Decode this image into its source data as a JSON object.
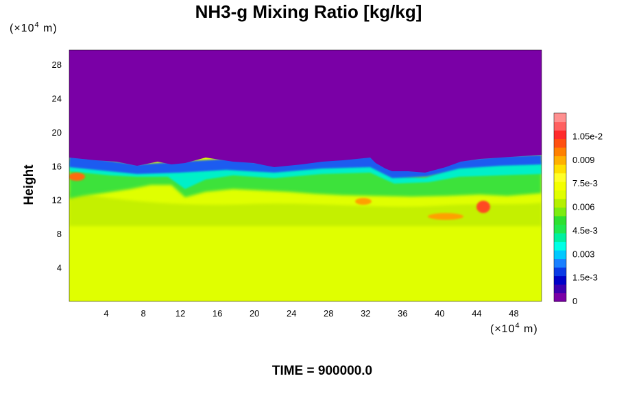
{
  "chart_data": {
    "type": "heatmap",
    "title": "NH3-g Mixing Ratio [kg/kg]",
    "ylabel": "Height",
    "x_unit": {
      "prefix": "(×10",
      "exp": "4",
      "suffix": " m)"
    },
    "y_unit": {
      "prefix": "(×10",
      "exp": "4",
      "suffix": " m)"
    },
    "xlim": [
      0,
      51
    ],
    "ylim": [
      0,
      29.7
    ],
    "x_ticks": [
      "4",
      "8",
      "12",
      "16",
      "20",
      "24",
      "28",
      "32",
      "36",
      "40",
      "44",
      "48"
    ],
    "x_tick_values": [
      4,
      8,
      12,
      16,
      20,
      24,
      28,
      32,
      36,
      40,
      44,
      48
    ],
    "y_ticks": [
      "4",
      "8",
      "12",
      "16",
      "20",
      "24",
      "28"
    ],
    "y_tick_values": [
      4,
      8,
      12,
      16,
      20,
      24,
      28
    ],
    "colorbar": {
      "labels": [
        "0",
        "1.5e-3",
        "0.003",
        "4.5e-3",
        "0.006",
        "7.5e-3",
        "0.009",
        "1.05e-2"
      ],
      "label_values": [
        0,
        0.0015,
        0.003,
        0.0045,
        0.006,
        0.0075,
        0.009,
        0.0105
      ],
      "max": 0.012,
      "colors": [
        "#7a00a6",
        "#3c00b0",
        "#0000c8",
        "#0a3ae6",
        "#1a80ff",
        "#00c8ff",
        "#00ffe6",
        "#00f0a0",
        "#20e850",
        "#2ee030",
        "#7cec10",
        "#b4f000",
        "#e0ff00",
        "#f4ff00",
        "#ffff28",
        "#ffe000",
        "#ffb000",
        "#ff8000",
        "#ff5010",
        "#ff2a2a",
        "#ff6060",
        "#ff9090"
      ]
    },
    "time_label": "TIME = 900000.0"
  }
}
